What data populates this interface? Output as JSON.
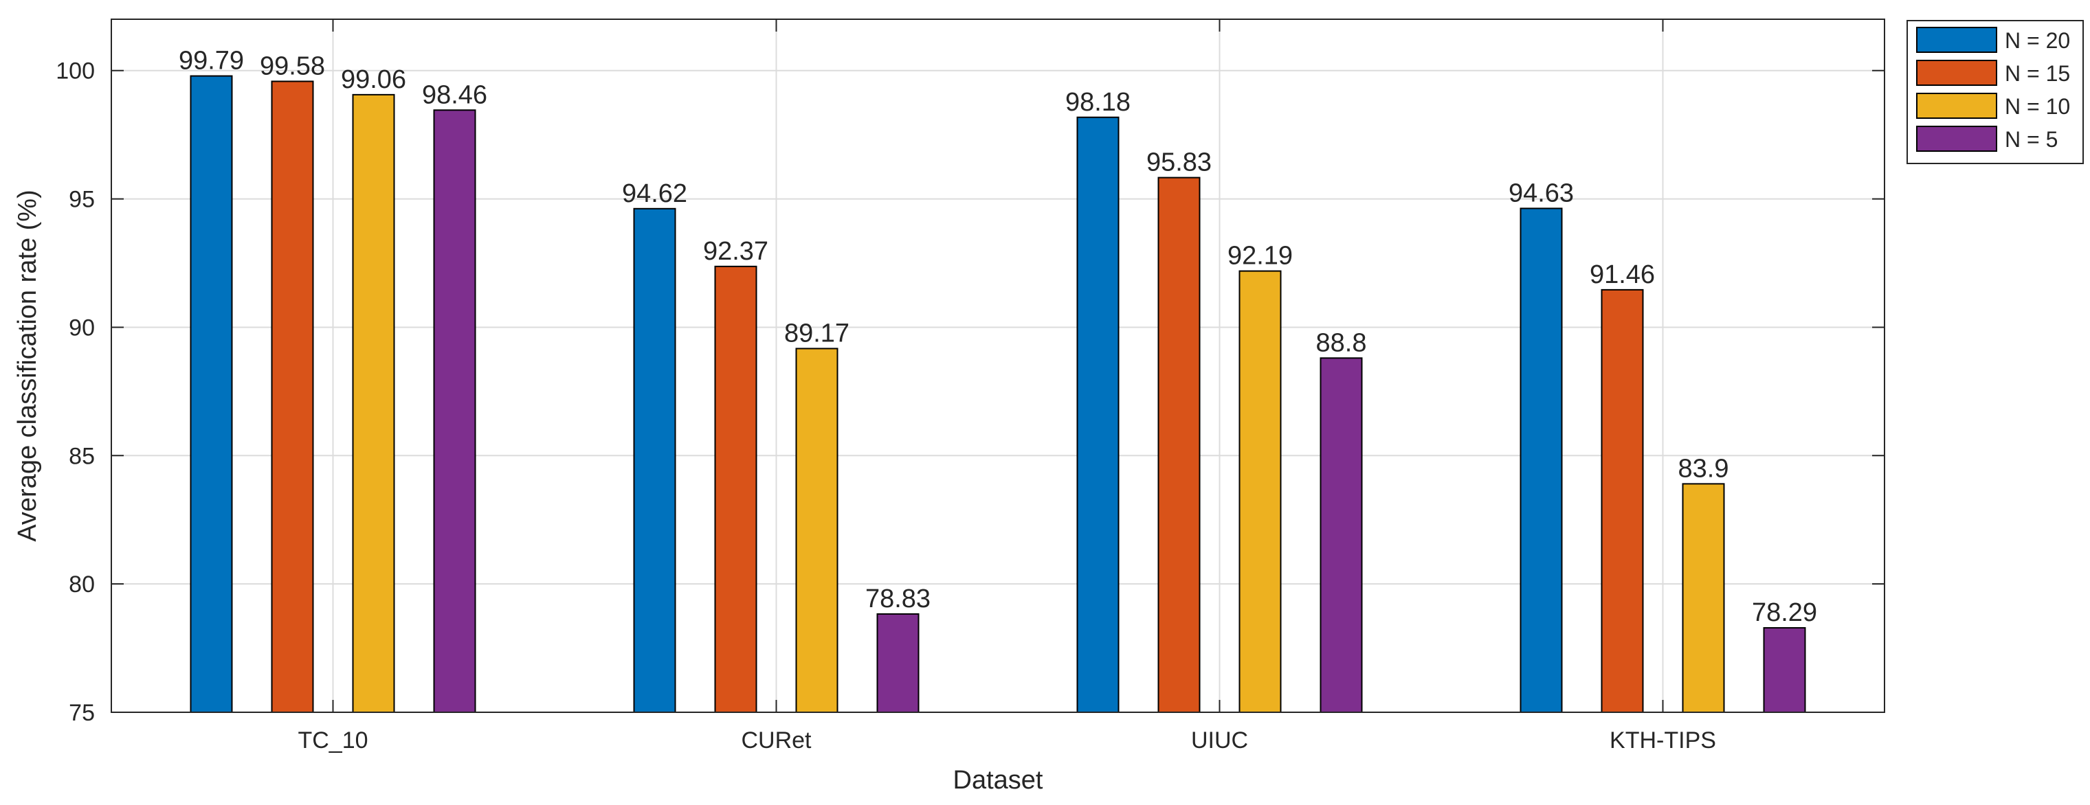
{
  "chart_data": {
    "type": "bar",
    "title": "",
    "xlabel": "Dataset",
    "ylabel": "Average classification rate (%)",
    "categories": [
      "TC_10",
      "CURet",
      "UIUC",
      "KTH-TIPS"
    ],
    "ylim": [
      75,
      102
    ],
    "yticks": [
      "75",
      "80",
      "85",
      "90",
      "95",
      "100"
    ],
    "grid": true,
    "legend_position": "outside-top-right",
    "series": [
      {
        "name": "N = 20",
        "color": "#0072BD",
        "values": [
          99.79,
          94.62,
          98.18,
          94.63
        ],
        "labels": [
          "99.79",
          "94.62",
          "98.18",
          "94.63"
        ]
      },
      {
        "name": "N = 15",
        "color": "#D95319",
        "values": [
          99.58,
          92.37,
          95.83,
          91.46
        ],
        "labels": [
          "99.58",
          "92.37",
          "95.83",
          "91.46"
        ]
      },
      {
        "name": "N = 10",
        "color": "#EDB120",
        "values": [
          99.06,
          89.17,
          92.19,
          83.9
        ],
        "labels": [
          "99.06",
          "89.17",
          "92.19",
          "83.9"
        ]
      },
      {
        "name": "N = 5",
        "color": "#7E2F8E",
        "values": [
          98.46,
          78.83,
          88.8,
          78.29
        ],
        "labels": [
          "98.46",
          "78.83",
          "88.8",
          "78.29"
        ]
      }
    ]
  }
}
